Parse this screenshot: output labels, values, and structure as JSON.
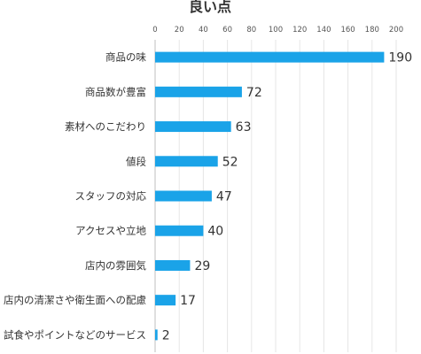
{
  "chart_data": {
    "type": "bar",
    "orientation": "horizontal",
    "title": "良い点",
    "categories": [
      "商品の味",
      "商品数が豊富",
      "素材へのこだわり",
      "値段",
      "スタッフの対応",
      "アクセスや立地",
      "店内の雰囲気",
      "店内の清潔さや衛生面への配慮",
      "試食やポイントなどのサービス"
    ],
    "values": [
      190,
      72,
      63,
      52,
      47,
      40,
      29,
      17,
      2
    ],
    "xlim": [
      0,
      200
    ],
    "xticks": [
      0,
      20,
      40,
      60,
      80,
      100,
      120,
      140,
      160,
      180,
      200
    ],
    "tick_position": "top",
    "grid": true,
    "bar_color": "#1aa3e8",
    "data_labels": true
  }
}
